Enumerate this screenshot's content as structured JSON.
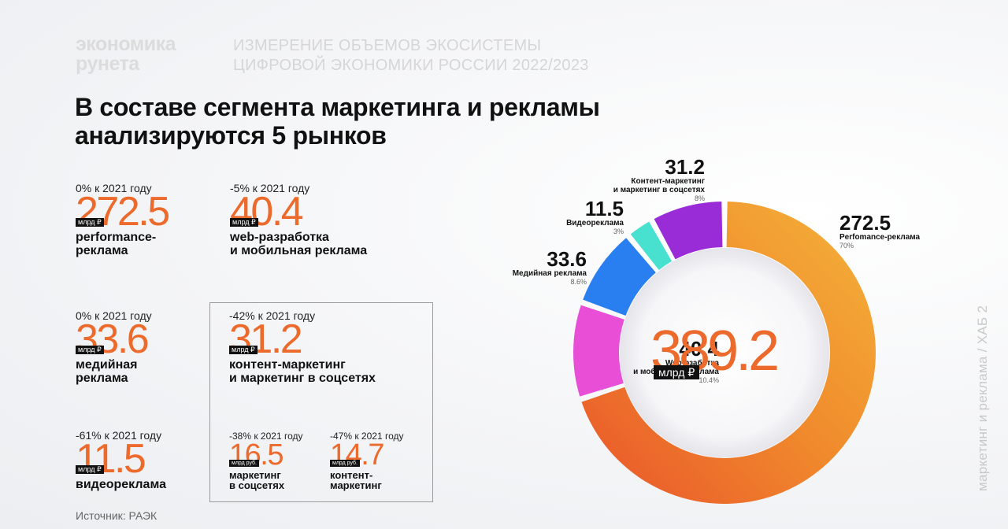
{
  "brand": {
    "line1": "экономика",
    "line2": "рунета"
  },
  "subtitle": {
    "line1": "ИЗМЕРЕНИЕ ОБЪЕМОВ ЭКОСИСТЕМЫ",
    "line2": "ЦИФРОВОЙ ЭКОНОМИКИ РОССИИ 2022/2023"
  },
  "headline": {
    "line1": "В составе сегмента маркетинга и рекламы",
    "line2": "анализируются 5 рынков"
  },
  "stats": {
    "performance": {
      "change": "0% к 2021 году",
      "value": "272.5",
      "unit": "млрд ₽",
      "label1": "performance-",
      "label2": "реклама"
    },
    "web": {
      "change": "-5% к 2021 году",
      "value": "40.4",
      "unit": "млрд ₽",
      "label1": "web-разработка",
      "label2": "и мобильная реклама"
    },
    "media": {
      "change": "0% к 2021 году",
      "value": "33.6",
      "unit": "млрд ₽",
      "label1": "медийная",
      "label2": "реклама"
    },
    "content": {
      "change": "-42% к 2021 году",
      "value": "31.2",
      "unit": "млрд ₽",
      "label1": "контент-маркетинг",
      "label2": "и маркетинг в соцсетях"
    },
    "video": {
      "change": "-61% к 2021 году",
      "value": "11.5",
      "unit": "млрд ₽",
      "label1": "видеореклама"
    },
    "smm": {
      "change": "-38% к 2021 году",
      "value": "16.5",
      "unit": "млрд руб.",
      "label1": "маркетинг",
      "label2": "в соцсетях"
    },
    "contentmkt": {
      "change": "-47% к 2021 году",
      "value": "14.7",
      "unit": "млрд руб.",
      "label1": "контент-",
      "label2": "маркетинг"
    }
  },
  "source": "Источник: РАЭК",
  "side_text": "маркетинг и реклама / ХАБ 2",
  "chart_data": {
    "type": "pie",
    "total": "389.2",
    "total_unit": "млрд ₽",
    "series": [
      {
        "value": 272.5,
        "label1": "Perfomance-реклама",
        "label2": "",
        "pct": "70%",
        "color": "#f08a2c"
      },
      {
        "value": 40.4,
        "label1": "Web-рзаботка",
        "label2": "и мобильная реклама",
        "pct": "10.4%",
        "color": "#e84fd6"
      },
      {
        "value": 33.6,
        "label1": "Медийная реклама",
        "label2": "",
        "pct": "8.6%",
        "color": "#2a7ff0"
      },
      {
        "value": 11.5,
        "label1": "Видеореклама",
        "label2": "",
        "pct": "3%",
        "color": "#48e0cf"
      },
      {
        "value": 31.2,
        "label1": "Контент-маркетинг",
        "label2": "и маркетинг в соцсетях",
        "pct": "8%",
        "color": "#9a2cd8"
      }
    ]
  }
}
